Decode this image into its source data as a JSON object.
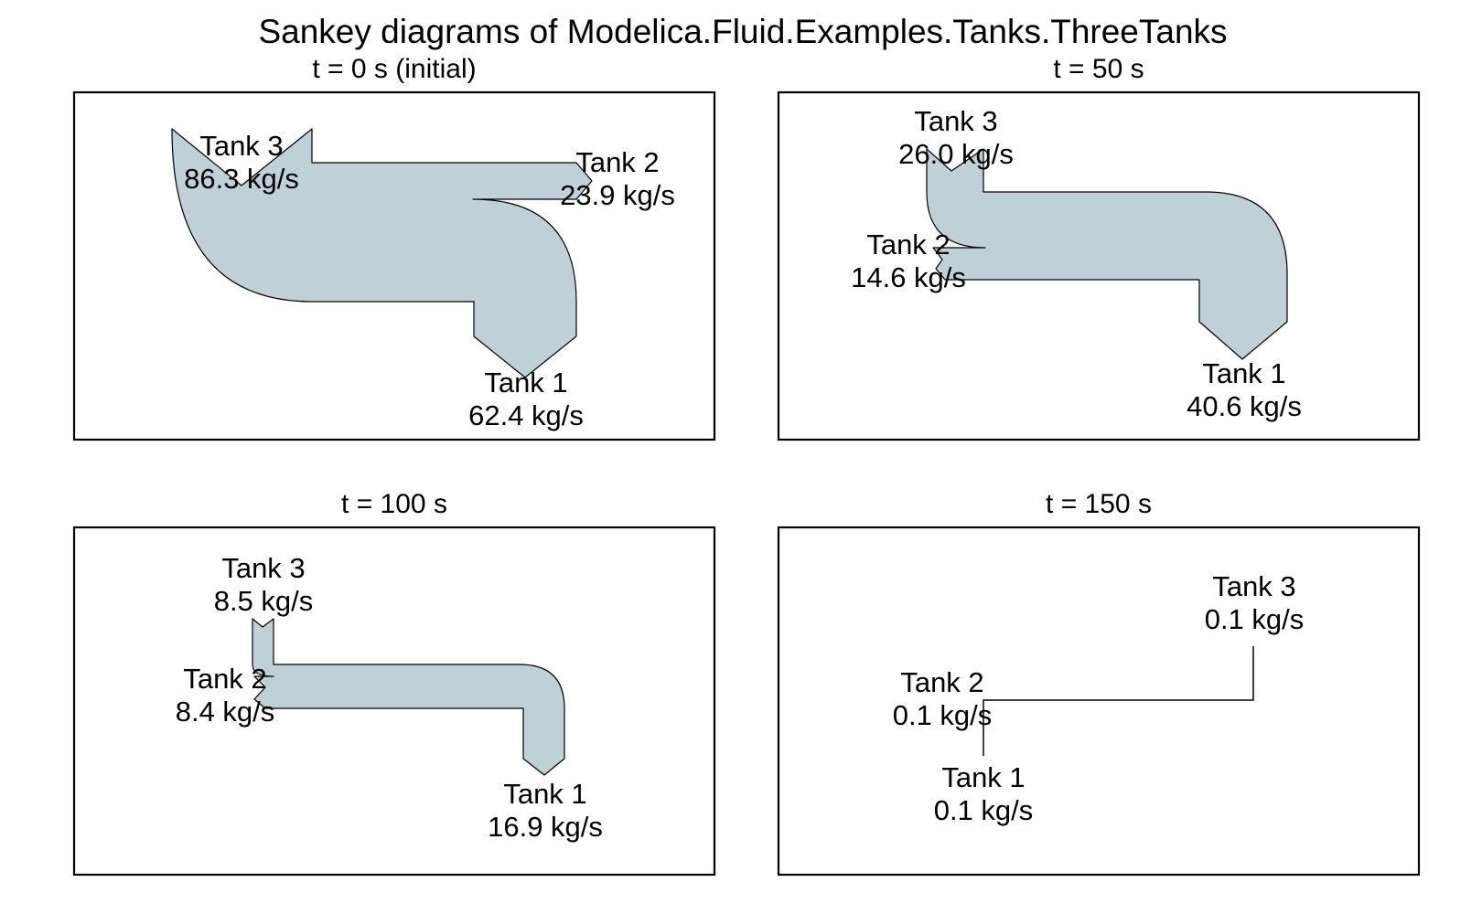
{
  "title": "Sankey diagrams of Modelica.Fluid.Examples.Tanks.ThreeTanks",
  "flow_color": "#bfd1d6",
  "panels": [
    {
      "title": "t = 0 s (initial)",
      "nodes": [
        {
          "name": "Tank 3",
          "value": "86.3 kg/s"
        },
        {
          "name": "Tank 2",
          "value": "23.9 kg/s"
        },
        {
          "name": "Tank 1",
          "value": "62.4 kg/s"
        }
      ]
    },
    {
      "title": "t = 50 s",
      "nodes": [
        {
          "name": "Tank 3",
          "value": "26.0 kg/s"
        },
        {
          "name": "Tank 2",
          "value": "14.6 kg/s"
        },
        {
          "name": "Tank 1",
          "value": "40.6 kg/s"
        }
      ]
    },
    {
      "title": "t = 100 s",
      "nodes": [
        {
          "name": "Tank 3",
          "value": "8.5 kg/s"
        },
        {
          "name": "Tank 2",
          "value": "8.4 kg/s"
        },
        {
          "name": "Tank 1",
          "value": "16.9 kg/s"
        }
      ]
    },
    {
      "title": "t = 150 s",
      "nodes": [
        {
          "name": "Tank 3",
          "value": "0.1 kg/s"
        },
        {
          "name": "Tank 2",
          "value": "0.1 kg/s"
        },
        {
          "name": "Tank 1",
          "value": "0.1 kg/s"
        }
      ]
    }
  ]
}
